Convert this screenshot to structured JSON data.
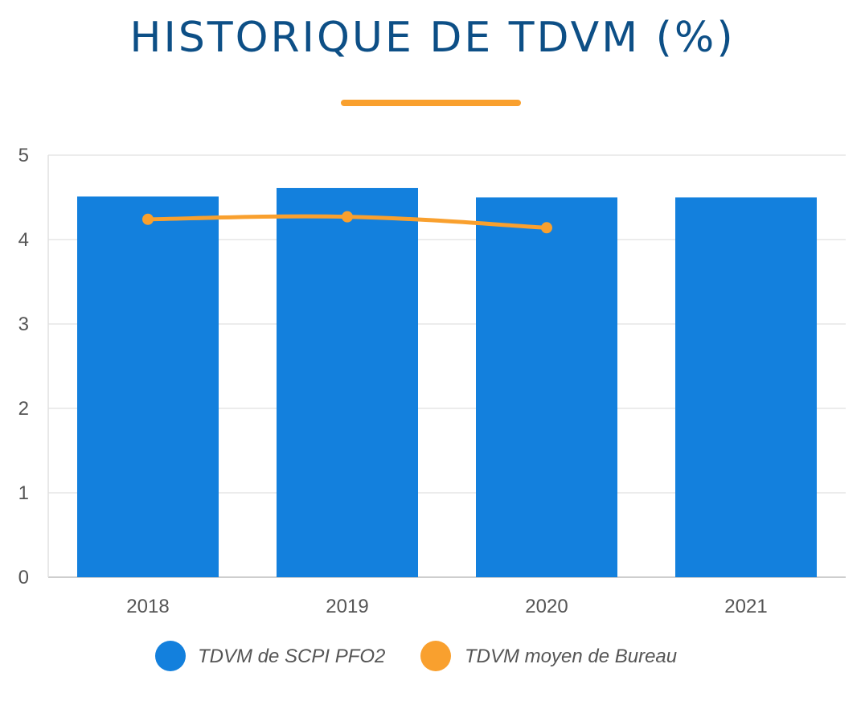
{
  "header": {
    "title": "HISTORIQUE DE TDVM (%)"
  },
  "colors": {
    "title": "#0d4f86",
    "underline": "#f9a02e",
    "bar": "#1380dd",
    "line": "#f9a02e",
    "grid": "#e6e6e6",
    "axis_text": "#555555"
  },
  "chart_data": {
    "type": "bar",
    "title": "HISTORIQUE DE TDVM (%)",
    "xlabel": "",
    "ylabel": "",
    "categories": [
      "2018",
      "2019",
      "2020",
      "2021"
    ],
    "ylim": [
      0,
      5
    ],
    "yticks": [
      0,
      1,
      2,
      3,
      4,
      5
    ],
    "grid": true,
    "legend_position": "bottom-center",
    "series": [
      {
        "name": "TDVM de SCPI PFO2",
        "type": "bar",
        "color": "#1380dd",
        "values": [
          4.51,
          4.61,
          4.5,
          4.5
        ]
      },
      {
        "name": "TDVM moyen de Bureau",
        "type": "line",
        "color": "#f9a02e",
        "values": [
          4.24,
          4.27,
          4.14,
          null
        ]
      }
    ]
  }
}
